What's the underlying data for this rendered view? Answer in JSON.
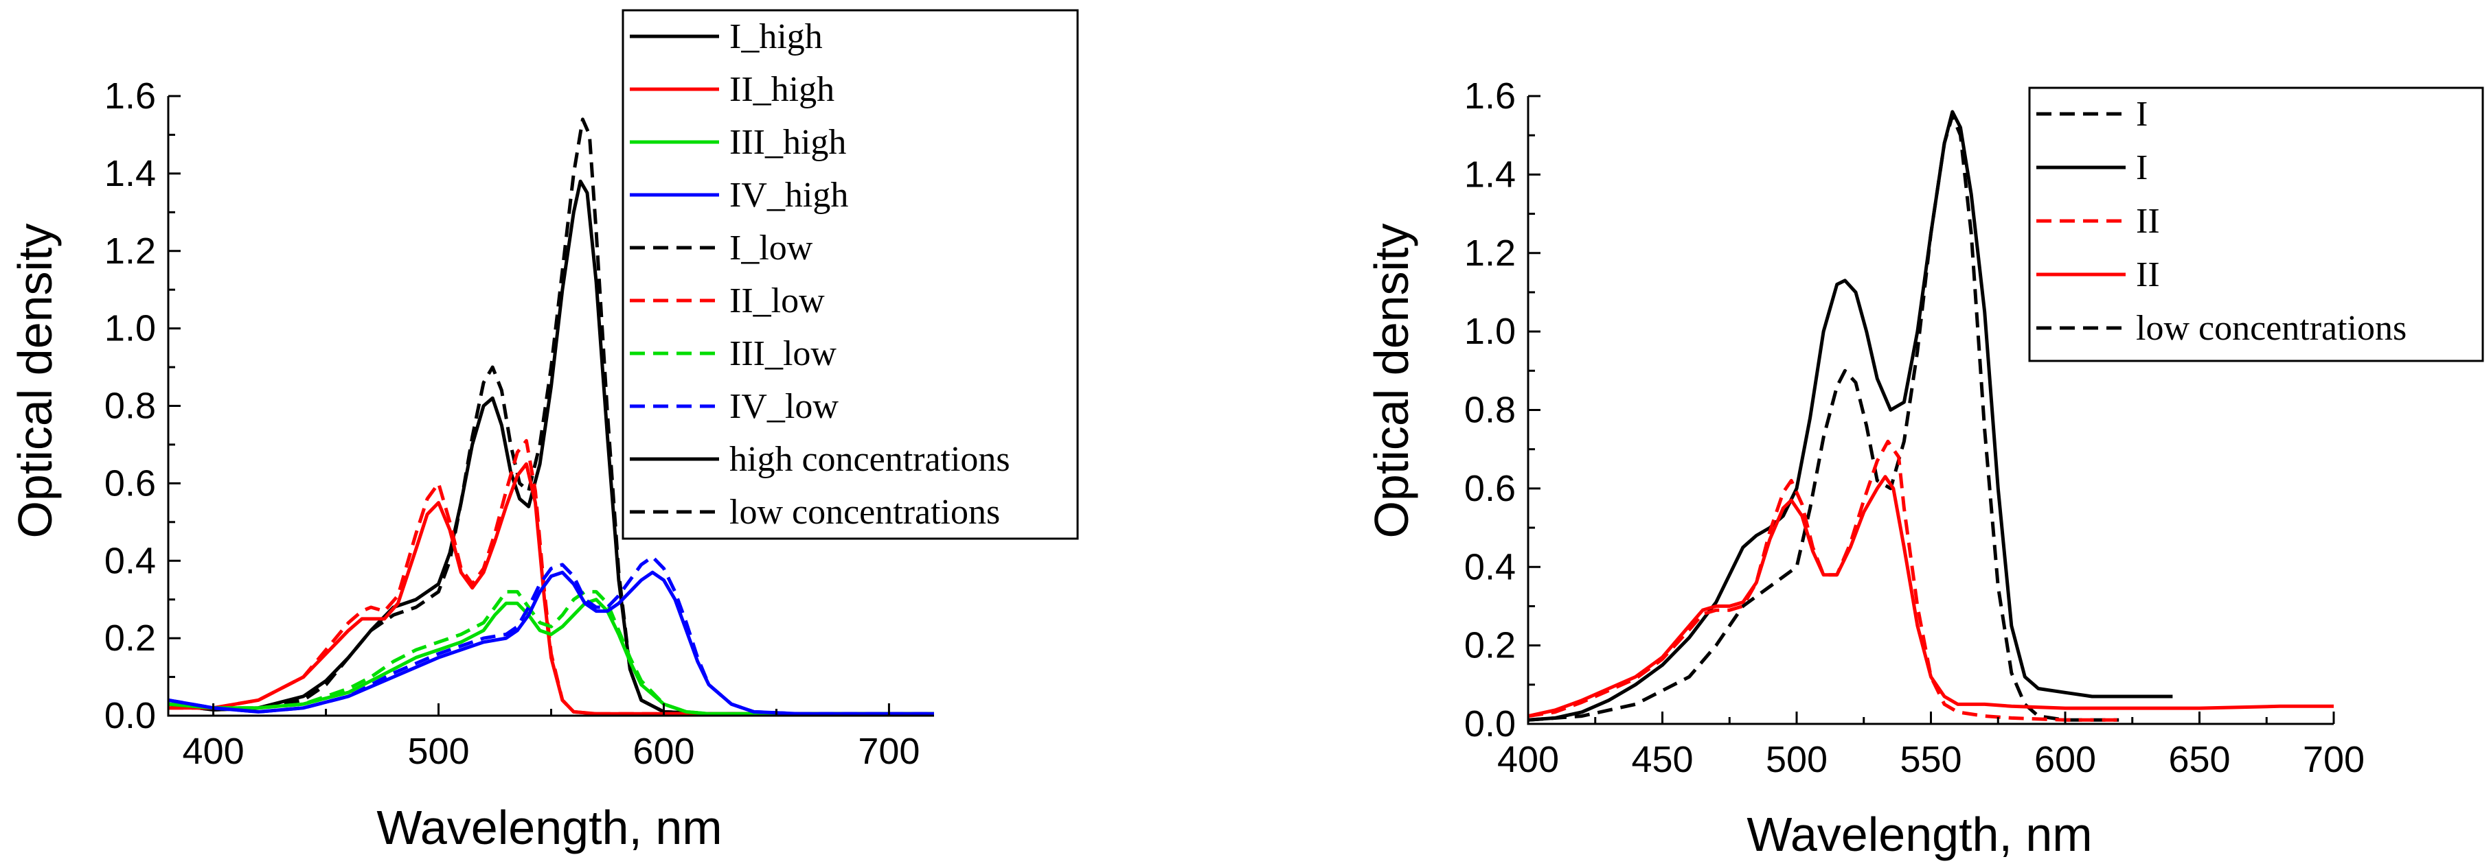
{
  "chart_data": [
    {
      "type": "line",
      "title": "",
      "xlabel": "Wavelength, nm",
      "ylabel": "Optical density",
      "xlim": [
        380,
        720
      ],
      "ylim": [
        0,
        1.6
      ],
      "xticks": [
        400,
        500,
        600,
        700
      ],
      "yticks": [
        0.0,
        0.2,
        0.4,
        0.6,
        0.8,
        1.0,
        1.2,
        1.4,
        1.6
      ],
      "legend_position": "top-right",
      "legend": [
        {
          "label": "I_high",
          "color": "#000000",
          "dash": "solid"
        },
        {
          "label": "II_high",
          "color": "#ff0000",
          "dash": "solid"
        },
        {
          "label": "III_high",
          "color": "#00dd00",
          "dash": "solid"
        },
        {
          "label": "IV_high",
          "color": "#0000ff",
          "dash": "solid"
        },
        {
          "label": "I_low",
          "color": "#000000",
          "dash": "dashed"
        },
        {
          "label": "II_low",
          "color": "#ff0000",
          "dash": "dashed"
        },
        {
          "label": "III_low",
          "color": "#00dd00",
          "dash": "dashed"
        },
        {
          "label": "IV_low",
          "color": "#0000ff",
          "dash": "dashed"
        },
        {
          "label": "high concentrations",
          "color": "#000000",
          "dash": "solid"
        },
        {
          "label": "low concentrations",
          "color": "#000000",
          "dash": "dashed"
        }
      ],
      "series": [
        {
          "name": "I_high",
          "color": "#000000",
          "dash": "solid",
          "x": [
            380,
            400,
            420,
            440,
            450,
            460,
            470,
            480,
            490,
            500,
            505,
            510,
            515,
            520,
            524,
            528,
            532,
            536,
            540,
            545,
            550,
            555,
            560,
            563,
            566,
            570,
            575,
            580,
            585,
            590,
            600,
            620,
            650,
            700,
            720
          ],
          "y": [
            0.03,
            0.015,
            0.02,
            0.05,
            0.09,
            0.15,
            0.22,
            0.28,
            0.3,
            0.34,
            0.42,
            0.55,
            0.7,
            0.8,
            0.82,
            0.75,
            0.63,
            0.56,
            0.54,
            0.65,
            0.85,
            1.1,
            1.3,
            1.38,
            1.35,
            1.12,
            0.72,
            0.35,
            0.12,
            0.04,
            0.01,
            0.005,
            0.005,
            0.005,
            0.005
          ]
        },
        {
          "name": "I_low",
          "color": "#000000",
          "dash": "dashed",
          "x": [
            380,
            400,
            420,
            440,
            450,
            460,
            470,
            480,
            490,
            500,
            505,
            510,
            515,
            520,
            524,
            528,
            532,
            536,
            540,
            545,
            550,
            555,
            560,
            564,
            567,
            570,
            575,
            580,
            585,
            590,
            600,
            620,
            650,
            700,
            720
          ],
          "y": [
            0.03,
            0.015,
            0.02,
            0.04,
            0.08,
            0.15,
            0.22,
            0.26,
            0.28,
            0.32,
            0.4,
            0.55,
            0.72,
            0.86,
            0.9,
            0.84,
            0.7,
            0.6,
            0.58,
            0.7,
            0.9,
            1.15,
            1.4,
            1.54,
            1.5,
            1.25,
            0.78,
            0.37,
            0.12,
            0.04,
            0.01,
            0.005,
            0.005,
            0.005,
            0.005
          ]
        },
        {
          "name": "II_high",
          "color": "#ff0000",
          "dash": "solid",
          "x": [
            380,
            400,
            420,
            440,
            450,
            460,
            466,
            470,
            476,
            482,
            490,
            495,
            500,
            505,
            510,
            515,
            520,
            525,
            530,
            535,
            539,
            543,
            547,
            550,
            555,
            560,
            570,
            580,
            600,
            650,
            720
          ],
          "y": [
            0.02,
            0.02,
            0.04,
            0.1,
            0.16,
            0.22,
            0.25,
            0.25,
            0.25,
            0.29,
            0.43,
            0.52,
            0.55,
            0.48,
            0.37,
            0.33,
            0.37,
            0.45,
            0.54,
            0.62,
            0.65,
            0.55,
            0.3,
            0.15,
            0.04,
            0.01,
            0.005,
            0.005,
            0.005,
            0.005,
            0.005
          ]
        },
        {
          "name": "II_low",
          "color": "#ff0000",
          "dash": "dashed",
          "x": [
            380,
            400,
            420,
            440,
            450,
            460,
            466,
            470,
            476,
            482,
            490,
            495,
            500,
            505,
            510,
            515,
            520,
            525,
            530,
            535,
            539,
            543,
            547,
            550,
            555,
            560,
            570,
            580,
            600,
            650,
            720
          ],
          "y": [
            0.02,
            0.02,
            0.04,
            0.1,
            0.17,
            0.24,
            0.27,
            0.28,
            0.27,
            0.31,
            0.47,
            0.56,
            0.6,
            0.5,
            0.38,
            0.34,
            0.38,
            0.47,
            0.58,
            0.68,
            0.71,
            0.58,
            0.32,
            0.16,
            0.04,
            0.01,
            0.005,
            0.005,
            0.005,
            0.005,
            0.005
          ]
        },
        {
          "name": "III_high",
          "color": "#00dd00",
          "dash": "solid",
          "x": [
            380,
            400,
            420,
            440,
            460,
            470,
            480,
            490,
            500,
            510,
            520,
            525,
            530,
            535,
            540,
            545,
            550,
            555,
            560,
            565,
            570,
            575,
            580,
            585,
            590,
            600,
            610,
            620,
            640,
            660,
            720
          ],
          "y": [
            0.03,
            0.02,
            0.02,
            0.03,
            0.06,
            0.09,
            0.12,
            0.15,
            0.17,
            0.19,
            0.22,
            0.26,
            0.29,
            0.29,
            0.26,
            0.22,
            0.21,
            0.23,
            0.26,
            0.29,
            0.3,
            0.27,
            0.21,
            0.14,
            0.08,
            0.03,
            0.01,
            0.005,
            0.005,
            0.005,
            0.005
          ]
        },
        {
          "name": "III_low",
          "color": "#00dd00",
          "dash": "dashed",
          "x": [
            380,
            400,
            420,
            440,
            460,
            470,
            480,
            490,
            500,
            510,
            520,
            525,
            530,
            535,
            540,
            545,
            550,
            555,
            560,
            565,
            570,
            575,
            580,
            585,
            590,
            600,
            610,
            620,
            640,
            660,
            720
          ],
          "y": [
            0.03,
            0.02,
            0.02,
            0.03,
            0.07,
            0.1,
            0.14,
            0.17,
            0.19,
            0.21,
            0.24,
            0.28,
            0.32,
            0.32,
            0.28,
            0.24,
            0.23,
            0.26,
            0.3,
            0.32,
            0.32,
            0.29,
            0.22,
            0.15,
            0.09,
            0.03,
            0.01,
            0.005,
            0.005,
            0.005,
            0.005
          ]
        },
        {
          "name": "IV_high",
          "color": "#0000ff",
          "dash": "solid",
          "x": [
            380,
            400,
            420,
            440,
            460,
            480,
            500,
            520,
            530,
            535,
            540,
            545,
            550,
            555,
            560,
            565,
            570,
            575,
            580,
            585,
            590,
            595,
            600,
            605,
            610,
            615,
            620,
            630,
            640,
            660,
            720
          ],
          "y": [
            0.04,
            0.02,
            0.01,
            0.02,
            0.05,
            0.1,
            0.15,
            0.19,
            0.2,
            0.22,
            0.26,
            0.32,
            0.36,
            0.37,
            0.34,
            0.29,
            0.27,
            0.27,
            0.29,
            0.32,
            0.35,
            0.37,
            0.35,
            0.3,
            0.22,
            0.14,
            0.08,
            0.03,
            0.01,
            0.005,
            0.005
          ]
        },
        {
          "name": "IV_low",
          "color": "#0000ff",
          "dash": "dashed",
          "x": [
            380,
            400,
            420,
            440,
            460,
            480,
            500,
            520,
            530,
            535,
            540,
            545,
            550,
            555,
            560,
            565,
            570,
            575,
            580,
            585,
            590,
            595,
            600,
            605,
            610,
            615,
            620,
            630,
            640,
            660,
            720
          ],
          "y": [
            0.04,
            0.02,
            0.01,
            0.02,
            0.05,
            0.11,
            0.16,
            0.2,
            0.21,
            0.23,
            0.28,
            0.34,
            0.38,
            0.39,
            0.36,
            0.3,
            0.28,
            0.28,
            0.31,
            0.35,
            0.39,
            0.41,
            0.38,
            0.32,
            0.24,
            0.15,
            0.08,
            0.03,
            0.01,
            0.005,
            0.005
          ]
        }
      ]
    },
    {
      "type": "line",
      "title": "",
      "xlabel": "Wavelength, nm",
      "ylabel": "Optical density",
      "xlim": [
        400,
        700
      ],
      "ylim": [
        0,
        1.6
      ],
      "xticks": [
        400,
        450,
        500,
        550,
        600,
        650,
        700
      ],
      "yticks": [
        0.0,
        0.2,
        0.4,
        0.6,
        0.8,
        1.0,
        1.2,
        1.4,
        1.6
      ],
      "legend_position": "top-right",
      "legend": [
        {
          "label": "I",
          "color": "#000000",
          "dash": "dashed"
        },
        {
          "label": "I",
          "color": "#000000",
          "dash": "solid"
        },
        {
          "label": "II",
          "color": "#ff0000",
          "dash": "dashed"
        },
        {
          "label": "II",
          "color": "#ff0000",
          "dash": "solid"
        },
        {
          "label": "low concentrations",
          "color": "#000000",
          "dash": "dashed"
        }
      ],
      "series": [
        {
          "name": "I (solid)",
          "color": "#000000",
          "dash": "solid",
          "x": [
            400,
            410,
            420,
            430,
            440,
            450,
            460,
            470,
            480,
            485,
            490,
            495,
            500,
            505,
            510,
            515,
            518,
            522,
            526,
            530,
            535,
            540,
            545,
            550,
            555,
            558,
            561,
            565,
            570,
            575,
            580,
            585,
            590,
            600,
            610,
            620,
            630,
            640
          ],
          "y": [
            0.01,
            0.015,
            0.03,
            0.06,
            0.1,
            0.15,
            0.22,
            0.31,
            0.45,
            0.48,
            0.5,
            0.53,
            0.6,
            0.78,
            1.0,
            1.12,
            1.13,
            1.1,
            1.0,
            0.88,
            0.8,
            0.82,
            1.0,
            1.25,
            1.48,
            1.56,
            1.52,
            1.35,
            1.05,
            0.6,
            0.25,
            0.12,
            0.09,
            0.08,
            0.07,
            0.07,
            0.07,
            0.07
          ]
        },
        {
          "name": "I (dashed)",
          "color": "#000000",
          "dash": "dashed",
          "x": [
            400,
            420,
            440,
            460,
            470,
            480,
            490,
            500,
            505,
            510,
            515,
            518,
            522,
            526,
            530,
            535,
            540,
            545,
            550,
            555,
            558,
            561,
            565,
            570,
            575,
            580,
            585,
            590,
            600,
            620
          ],
          "y": [
            0.01,
            0.02,
            0.05,
            0.12,
            0.2,
            0.3,
            0.35,
            0.4,
            0.55,
            0.73,
            0.86,
            0.9,
            0.87,
            0.76,
            0.62,
            0.6,
            0.72,
            0.95,
            1.25,
            1.48,
            1.55,
            1.5,
            1.25,
            0.75,
            0.35,
            0.13,
            0.05,
            0.02,
            0.01,
            0.01
          ]
        },
        {
          "name": "II (solid)",
          "color": "#ff0000",
          "dash": "solid",
          "x": [
            400,
            410,
            420,
            430,
            440,
            450,
            460,
            465,
            470,
            475,
            480,
            485,
            490,
            495,
            498,
            502,
            506,
            510,
            515,
            520,
            525,
            530,
            533,
            536,
            540,
            545,
            550,
            555,
            560,
            570,
            580,
            600,
            620,
            650,
            680,
            700
          ],
          "y": [
            0.02,
            0.035,
            0.06,
            0.09,
            0.12,
            0.17,
            0.25,
            0.29,
            0.3,
            0.3,
            0.31,
            0.36,
            0.47,
            0.55,
            0.57,
            0.53,
            0.44,
            0.38,
            0.38,
            0.45,
            0.54,
            0.6,
            0.63,
            0.6,
            0.45,
            0.25,
            0.12,
            0.07,
            0.05,
            0.05,
            0.045,
            0.04,
            0.04,
            0.04,
            0.045,
            0.045
          ]
        },
        {
          "name": "II (dashed)",
          "color": "#ff0000",
          "dash": "dashed",
          "x": [
            400,
            410,
            420,
            430,
            440,
            450,
            460,
            465,
            470,
            475,
            480,
            485,
            490,
            495,
            498,
            502,
            506,
            510,
            515,
            520,
            525,
            530,
            534,
            538,
            540,
            545,
            550,
            555,
            560,
            570,
            580,
            600,
            620
          ],
          "y": [
            0.02,
            0.03,
            0.055,
            0.085,
            0.115,
            0.165,
            0.24,
            0.28,
            0.29,
            0.29,
            0.3,
            0.36,
            0.49,
            0.59,
            0.62,
            0.56,
            0.45,
            0.38,
            0.38,
            0.46,
            0.57,
            0.67,
            0.72,
            0.68,
            0.55,
            0.3,
            0.12,
            0.05,
            0.03,
            0.02,
            0.015,
            0.01,
            0.01
          ]
        }
      ]
    }
  ]
}
